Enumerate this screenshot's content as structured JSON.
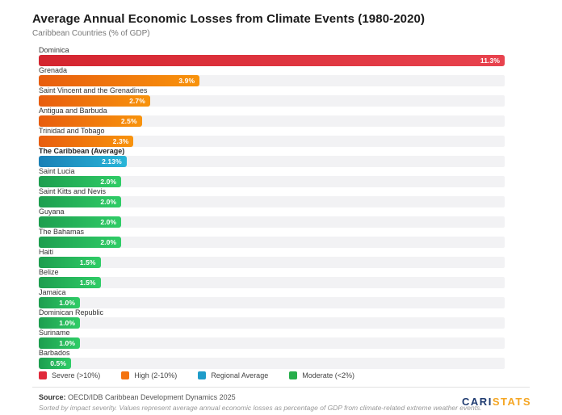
{
  "chart_data": {
    "type": "bar",
    "orientation": "horizontal",
    "title": "Average Annual Economic Losses from Climate Events (1980-2020)",
    "subtitle": "Caribbean Countries (% of GDP)",
    "xlabel": "",
    "ylabel": "",
    "xlim": [
      0,
      11.3
    ],
    "grid": false,
    "legend_position": "bottom",
    "bars": [
      {
        "label": "Dominica",
        "value": 11.3,
        "display": "11.3%",
        "category": "severe",
        "bold": false
      },
      {
        "label": "Grenada",
        "value": 3.9,
        "display": "3.9%",
        "category": "high",
        "bold": false
      },
      {
        "label": "Saint Vincent and the Grenadines",
        "value": 2.7,
        "display": "2.7%",
        "category": "high",
        "bold": false
      },
      {
        "label": "Antigua and Barbuda",
        "value": 2.5,
        "display": "2.5%",
        "category": "high",
        "bold": false
      },
      {
        "label": "Trinidad and Tobago",
        "value": 2.3,
        "display": "2.3%",
        "category": "high",
        "bold": false
      },
      {
        "label": "The Caribbean (Average)",
        "value": 2.13,
        "display": "2.13%",
        "category": "regional",
        "bold": true
      },
      {
        "label": "Saint Lucia",
        "value": 2.0,
        "display": "2.0%",
        "category": "moderate",
        "bold": false
      },
      {
        "label": "Saint Kitts and Nevis",
        "value": 2.0,
        "display": "2.0%",
        "category": "moderate",
        "bold": false
      },
      {
        "label": "Guyana",
        "value": 2.0,
        "display": "2.0%",
        "category": "moderate",
        "bold": false
      },
      {
        "label": "The Bahamas",
        "value": 2.0,
        "display": "2.0%",
        "category": "moderate",
        "bold": false
      },
      {
        "label": "Haiti",
        "value": 1.5,
        "display": "1.5%",
        "category": "moderate",
        "bold": false
      },
      {
        "label": "Belize",
        "value": 1.5,
        "display": "1.5%",
        "category": "moderate",
        "bold": false
      },
      {
        "label": "Jamaica",
        "value": 1.0,
        "display": "1.0%",
        "category": "moderate",
        "bold": false
      },
      {
        "label": "Dominican Republic",
        "value": 1.0,
        "display": "1.0%",
        "category": "moderate",
        "bold": false
      },
      {
        "label": "Suriname",
        "value": 1.0,
        "display": "1.0%",
        "category": "moderate",
        "bold": false
      },
      {
        "label": "Barbados",
        "value": 0.5,
        "display": "0.5%",
        "category": "moderate",
        "bold": false
      }
    ],
    "legend": [
      {
        "label": "Severe (>10%)",
        "category": "severe",
        "swatch": "#e0293a"
      },
      {
        "label": "High (2-10%)",
        "category": "high",
        "swatch": "#f4730f"
      },
      {
        "label": "Regional Average",
        "category": "regional",
        "swatch": "#1f9cc9"
      },
      {
        "label": "Moderate (<2%)",
        "category": "moderate",
        "swatch": "#27ae4b"
      }
    ]
  },
  "colors": {
    "severe": [
      "#d4252f",
      "#e8434e"
    ],
    "high": [
      "#e85d0e",
      "#f8930c"
    ],
    "regional": [
      "#1a80b6",
      "#28b5d8"
    ],
    "moderate": [
      "#1d9e4f",
      "#2fcc66"
    ],
    "track": "#f2f2f4"
  },
  "footer": {
    "source_label": "Source:",
    "source_text": " OECD/IDB Caribbean Development Dynamics 2025",
    "note": "Sorted by impact severity. Values represent average annual economic losses as percentage of GDP from climate-related extreme weather events."
  },
  "logo": {
    "part1": "CARI",
    "part2": "STATS",
    "color1": "#1f3b70",
    "color2": "#f5a623"
  }
}
